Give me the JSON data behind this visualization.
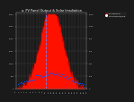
{
  "title": "a. PV Panel Output & Solar Irradiation",
  "bg_color": "#1a1a1a",
  "plot_bg": "#1a1a1a",
  "grid_color": "#555555",
  "bar_color": "#ff1100",
  "bar_edge": "#cc0000",
  "dot_color": "#0055ff",
  "vline_color": "#6688ff",
  "legend_pv": "PV Panel W",
  "legend_solar": "Solar Rad W/m2",
  "ylim_left": [
    0,
    4000
  ],
  "ylim_right": [
    0,
    1000
  ],
  "n_pv": 200,
  "n_solar": 80
}
